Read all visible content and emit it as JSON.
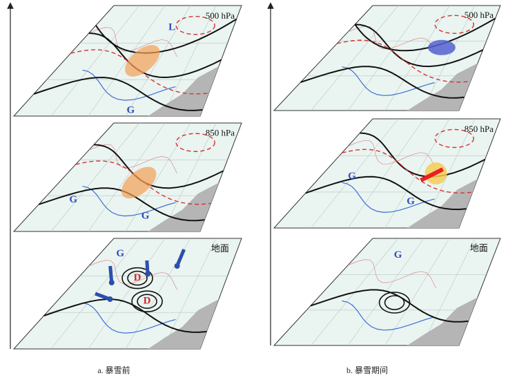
{
  "panels": [
    {
      "caption": "a. 暴雪前",
      "layers": [
        {
          "level": "500 hPa",
          "symbols": [
            "L",
            "G"
          ]
        },
        {
          "level": "850 hPa",
          "symbols": [
            "G",
            "G"
          ]
        },
        {
          "level": "地面",
          "symbols": [
            "G",
            "D",
            "D"
          ]
        }
      ]
    },
    {
      "caption": "b. 暴雪期间",
      "layers": [
        {
          "level": "500 hPa",
          "symbols": []
        },
        {
          "level": "850 hPa",
          "symbols": [
            "G",
            "G"
          ]
        },
        {
          "level": "地面",
          "symbols": [
            "G"
          ]
        }
      ]
    }
  ]
}
